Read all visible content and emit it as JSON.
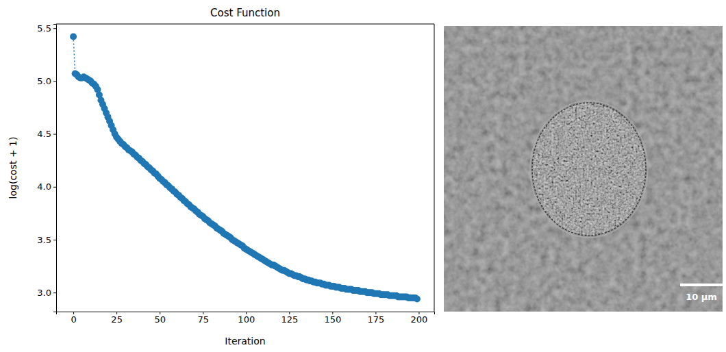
{
  "chart_data": {
    "type": "line",
    "title": "Cost Function",
    "x_label": "Iteration",
    "y_label": "log(cost + 1)",
    "color": "#1f77b4",
    "marker": "circle",
    "line_style": "dotted",
    "grid": false,
    "xlim": [
      -9.95,
      208.95
    ],
    "ylim": [
      2.82,
      5.54
    ],
    "xticks": [
      0,
      25,
      50,
      75,
      100,
      125,
      150,
      175,
      200
    ],
    "yticks": [
      {
        "value": 3,
        "label": "3.0"
      },
      {
        "value": 3.5,
        "label": "3.5"
      },
      {
        "value": 4,
        "label": "4.0"
      },
      {
        "value": 4.5,
        "label": "4.5"
      },
      {
        "value": 5,
        "label": "5.0"
      },
      {
        "value": 5.5,
        "label": "5.5"
      }
    ],
    "x": [
      0,
      1,
      2,
      3,
      4,
      5,
      6,
      7,
      8,
      9,
      10,
      11,
      12,
      13,
      14,
      15,
      16,
      17,
      18,
      19,
      20,
      21,
      22,
      23,
      24,
      25,
      26,
      27,
      28,
      29,
      30,
      31,
      32,
      33,
      34,
      35,
      36,
      37,
      38,
      39,
      40,
      41,
      42,
      43,
      44,
      45,
      46,
      47,
      48,
      49,
      50,
      51,
      52,
      53,
      54,
      55,
      56,
      57,
      58,
      59,
      60,
      61,
      62,
      63,
      64,
      65,
      66,
      67,
      68,
      69,
      70,
      71,
      72,
      73,
      74,
      75,
      76,
      77,
      78,
      79,
      80,
      81,
      82,
      83,
      84,
      85,
      86,
      87,
      88,
      89,
      90,
      91,
      92,
      93,
      94,
      95,
      96,
      97,
      98,
      99,
      100,
      101,
      102,
      103,
      104,
      105,
      106,
      107,
      108,
      109,
      110,
      111,
      112,
      113,
      114,
      115,
      116,
      117,
      118,
      119,
      120,
      121,
      122,
      123,
      124,
      125,
      126,
      127,
      128,
      129,
      130,
      131,
      132,
      133,
      134,
      135,
      136,
      137,
      138,
      139,
      140,
      141,
      142,
      143,
      144,
      145,
      146,
      147,
      148,
      149,
      150,
      151,
      152,
      153,
      154,
      155,
      156,
      157,
      158,
      159,
      160,
      161,
      162,
      163,
      164,
      165,
      166,
      167,
      168,
      169,
      170,
      171,
      172,
      173,
      174,
      175,
      176,
      177,
      178,
      179,
      180,
      181,
      182,
      183,
      184,
      185,
      186,
      187,
      188,
      189,
      190,
      191,
      192,
      193,
      194,
      195,
      196,
      197,
      198,
      199
    ],
    "values": [
      5.42,
      5.07,
      5.06,
      5.04,
      5.03,
      5.03,
      5.04,
      5.03,
      5.02,
      5.01,
      5.0,
      4.98,
      4.97,
      4.95,
      4.92,
      4.87,
      4.82,
      4.78,
      4.74,
      4.7,
      4.66,
      4.62,
      4.58,
      4.54,
      4.5,
      4.47,
      4.45,
      4.43,
      4.41,
      4.4,
      4.38,
      4.37,
      4.35,
      4.34,
      4.33,
      4.31,
      4.3,
      4.28,
      4.27,
      4.25,
      4.24,
      4.22,
      4.21,
      4.19,
      4.18,
      4.16,
      4.15,
      4.13,
      4.12,
      4.1,
      4.08,
      4.07,
      4.05,
      4.04,
      4.02,
      4.01,
      3.99,
      3.98,
      3.96,
      3.95,
      3.93,
      3.92,
      3.9,
      3.89,
      3.87,
      3.86,
      3.84,
      3.83,
      3.81,
      3.8,
      3.79,
      3.77,
      3.76,
      3.74,
      3.73,
      3.72,
      3.7,
      3.69,
      3.68,
      3.66,
      3.65,
      3.64,
      3.63,
      3.61,
      3.6,
      3.59,
      3.58,
      3.56,
      3.55,
      3.54,
      3.53,
      3.52,
      3.5,
      3.49,
      3.48,
      3.47,
      3.46,
      3.45,
      3.44,
      3.42,
      3.41,
      3.4,
      3.39,
      3.38,
      3.37,
      3.36,
      3.35,
      3.34,
      3.33,
      3.32,
      3.31,
      3.3,
      3.29,
      3.28,
      3.27,
      3.26,
      3.26,
      3.25,
      3.24,
      3.23,
      3.22,
      3.21,
      3.21,
      3.2,
      3.19,
      3.18,
      3.18,
      3.17,
      3.16,
      3.16,
      3.15,
      3.15,
      3.14,
      3.13,
      3.13,
      3.12,
      3.12,
      3.11,
      3.11,
      3.1,
      3.1,
      3.09,
      3.09,
      3.09,
      3.08,
      3.08,
      3.07,
      3.07,
      3.07,
      3.06,
      3.06,
      3.06,
      3.05,
      3.05,
      3.05,
      3.04,
      3.04,
      3.04,
      3.03,
      3.03,
      3.03,
      3.03,
      3.02,
      3.02,
      3.02,
      3.02,
      3.01,
      3.01,
      3.01,
      3.01,
      3.0,
      3.0,
      3.0,
      3.0,
      2.99,
      2.99,
      2.99,
      2.99,
      2.98,
      2.98,
      2.98,
      2.98,
      2.98,
      2.97,
      2.97,
      2.97,
      2.97,
      2.97,
      2.96,
      2.96,
      2.96,
      2.96,
      2.96,
      2.96,
      2.95,
      2.95,
      2.95,
      2.95,
      2.95,
      2.94
    ]
  },
  "image": {
    "scale_bar": {
      "label": "10 µm"
    }
  }
}
